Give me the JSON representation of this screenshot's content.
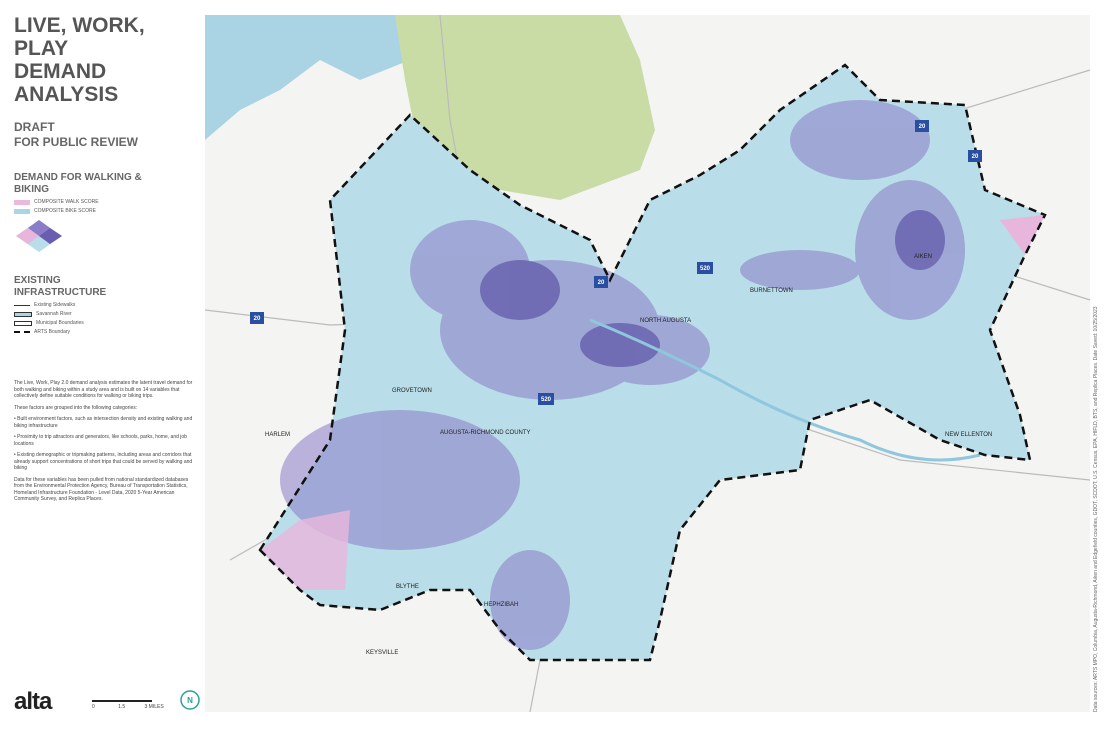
{
  "header": {
    "title": [
      "LIVE, WORK, PLAY",
      "DEMAND",
      "ANALYSIS"
    ],
    "subtitle": [
      "DRAFT",
      "FOR PUBLIC REVIEW"
    ]
  },
  "legend": {
    "demand_title": [
      "DEMAND FOR WALKING &",
      "BIKING"
    ],
    "demand_items": [
      "COMPOSITE WALK SCORE",
      "COMPOSITE BIKE SCORE"
    ],
    "infra_title": [
      "EXISTING",
      "INFRASTRUCTURE"
    ],
    "infra_items": [
      "Existing Sidewalks",
      "Savannah River",
      "Municipal Boundaries",
      "ARTS Boundary"
    ]
  },
  "description": [
    "The Live, Work, Play 2.0 demand analysis estimates the latent travel demand for both walking and biking within a study area and is built on 14 variables that collectively define suitable conditions for walking or biking trips.",
    "These factors are grouped into the following categories:",
    "• Built environment factors, such as intersection density and existing walking and biking infrastructure",
    "• Proximity to trip attractors and generators, like schools, parks, home, and job locations",
    "• Existing demographic or tripmaking patterns, including areas and corridors that already support concentrations of short trips that could be served by walking and biking",
    "Data for these variables has been pulled from national standardized databases from the Environmental Protection Agency, Bureau of Transportation Statistics, Homeland Infrastructure Foundation - Level Data, 2020 5-Year American Community Survey, and Replica Places."
  ],
  "map": {
    "places": [
      "GROVETOWN",
      "AUGUSTA-RICHMOND COUNTY",
      "HARLEM",
      "BLYTHE",
      "HEPHZIBAH",
      "KEYSVILLE",
      "NEW ELLENTON",
      "AIKEN",
      "NORTH AUGUSTA",
      "BURNETTOWN"
    ],
    "interstates": [
      "20",
      "20",
      "20",
      "520",
      "520",
      "20"
    ]
  },
  "scale": [
    "0",
    "1.5",
    "3 MILES"
  ],
  "logo": "alta",
  "credit": "Data sources: ARTS MPO, Columbia, Augusta-Richmond, Aiken and Edgefield counties, GDOT, SCDOT, U.S. Census, EPA, HIFLD, BTS, and Replica Places.   Date Saved: 10/25/2023"
}
